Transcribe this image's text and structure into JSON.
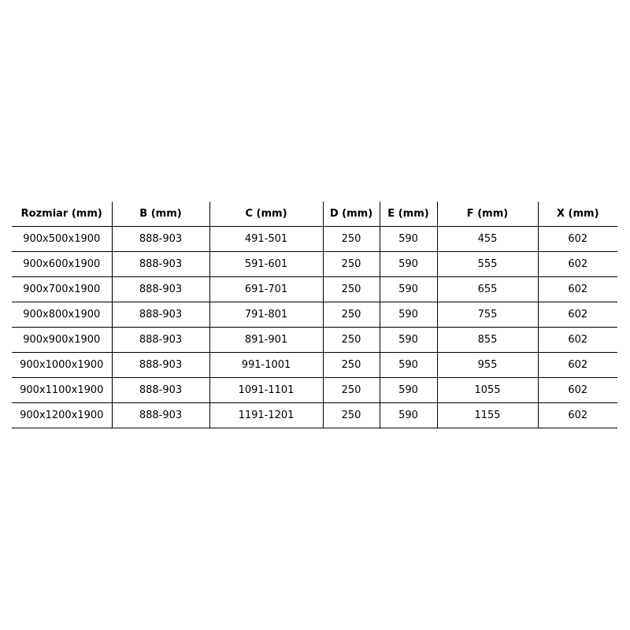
{
  "headers": [
    "Rozmiar (mm)",
    "B (mm)",
    "C (mm)",
    "D (mm)",
    "E (mm)",
    "F (mm)",
    "X (mm)"
  ],
  "rows": [
    [
      "900x500x1900",
      "888-903",
      "491-501",
      "250",
      "590",
      "455",
      "602"
    ],
    [
      "900x600x1900",
      "888-903",
      "591-601",
      "250",
      "590",
      "555",
      "602"
    ],
    [
      "900x700x1900",
      "888-903",
      "691-701",
      "250",
      "590",
      "655",
      "602"
    ],
    [
      "900x800x1900",
      "888-903",
      "791-801",
      "250",
      "590",
      "755",
      "602"
    ],
    [
      "900x900x1900",
      "888-903",
      "891-901",
      "250",
      "590",
      "855",
      "602"
    ],
    [
      "900x1000x1900",
      "888-903",
      "991-1001",
      "250",
      "590",
      "955",
      "602"
    ],
    [
      "900x1100x1900",
      "888-903",
      "1091-1101",
      "250",
      "590",
      "1055",
      "602"
    ],
    [
      "900x1200x1900",
      "888-903",
      "1191-1201",
      "250",
      "590",
      "1155",
      "602"
    ]
  ]
}
